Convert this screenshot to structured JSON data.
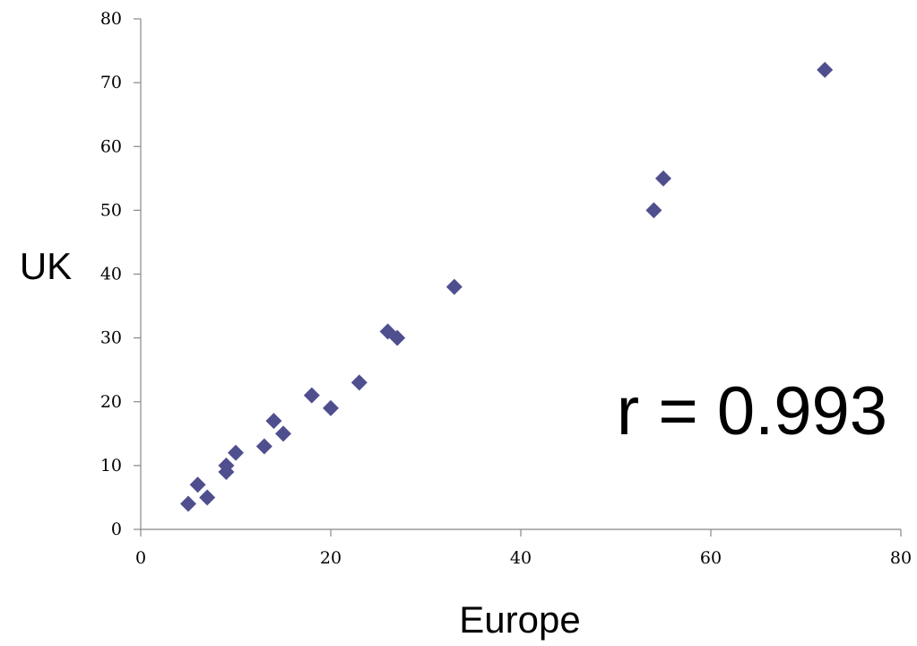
{
  "chart_data": {
    "type": "scatter",
    "title": "",
    "xlabel": "Europe",
    "ylabel": "UK",
    "xlim": [
      0,
      80
    ],
    "ylim": [
      0,
      80
    ],
    "xticks": [
      0,
      20,
      40,
      60,
      80
    ],
    "yticks": [
      0,
      10,
      20,
      30,
      40,
      50,
      60,
      70,
      80
    ],
    "grid": false,
    "legend": "none",
    "marker": "diamond",
    "marker_color": "#4F4F8F",
    "annotation": "r = 0.993",
    "series": [
      {
        "points": [
          {
            "x": 5,
            "y": 4
          },
          {
            "x": 6,
            "y": 7
          },
          {
            "x": 7,
            "y": 5
          },
          {
            "x": 9,
            "y": 9
          },
          {
            "x": 9,
            "y": 10
          },
          {
            "x": 10,
            "y": 12
          },
          {
            "x": 13,
            "y": 13
          },
          {
            "x": 14,
            "y": 17
          },
          {
            "x": 15,
            "y": 15
          },
          {
            "x": 18,
            "y": 21
          },
          {
            "x": 20,
            "y": 19
          },
          {
            "x": 23,
            "y": 23
          },
          {
            "x": 26,
            "y": 31
          },
          {
            "x": 27,
            "y": 30
          },
          {
            "x": 33,
            "y": 38
          },
          {
            "x": 54,
            "y": 50
          },
          {
            "x": 55,
            "y": 55
          },
          {
            "x": 72,
            "y": 72
          }
        ]
      }
    ]
  }
}
